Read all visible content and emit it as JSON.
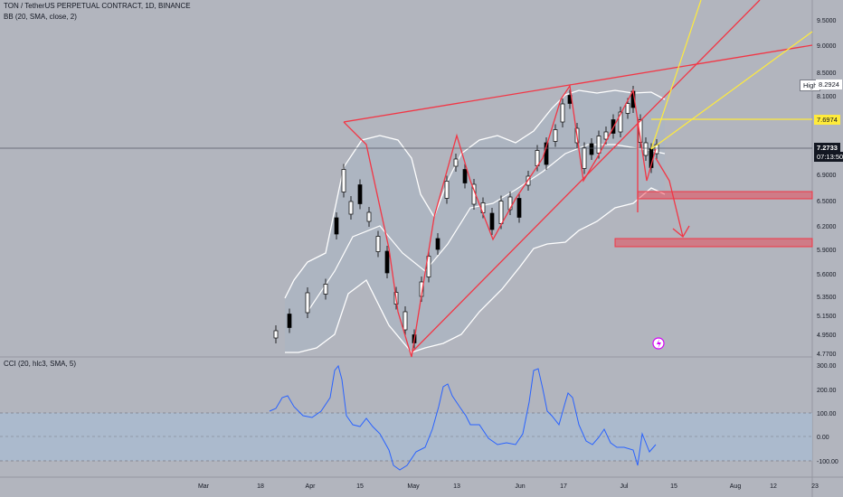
{
  "header": {
    "symbol_line": "TON / TetherUS PERPETUAL CONTRACT, 1D, BINANCE",
    "bb_line": "BB (20, SMA, close, 2)"
  },
  "cci_pane": {
    "label": "CCI (20, hlc3, SMA, 5)",
    "ticks": [
      "300.00",
      "200.00",
      "100.00",
      "0.00",
      "-100.00"
    ]
  },
  "price_axis": {
    "ticks": [
      "9.5000",
      "9.0000",
      "8.5000",
      "8.1000",
      "7.6974",
      "6.9000",
      "6.5000",
      "6.2000",
      "5.9000",
      "5.6000",
      "5.3500",
      "5.1500",
      "4.9500",
      "4.7700"
    ],
    "high_label": "High",
    "high_value": "8.2924",
    "alert_value": "7.6974",
    "current_price": "7.2733",
    "countdown": "07:13:50"
  },
  "time_axis": {
    "labels": [
      "Mar",
      "18",
      "Apr",
      "15",
      "May",
      "13",
      "Jun",
      "17",
      "Jul",
      "15",
      "Aug",
      "12",
      "23"
    ]
  },
  "colors": {
    "background": "#b2b5be",
    "pattern_lines": "#f23645",
    "fib_lines": "#ffeb3b",
    "bollinger": "#ffffff",
    "cci_line": "#2962ff",
    "cci_band": "#a9bbd1",
    "candles": "#000000"
  },
  "icons": [
    "flash-alert-icon"
  ]
}
